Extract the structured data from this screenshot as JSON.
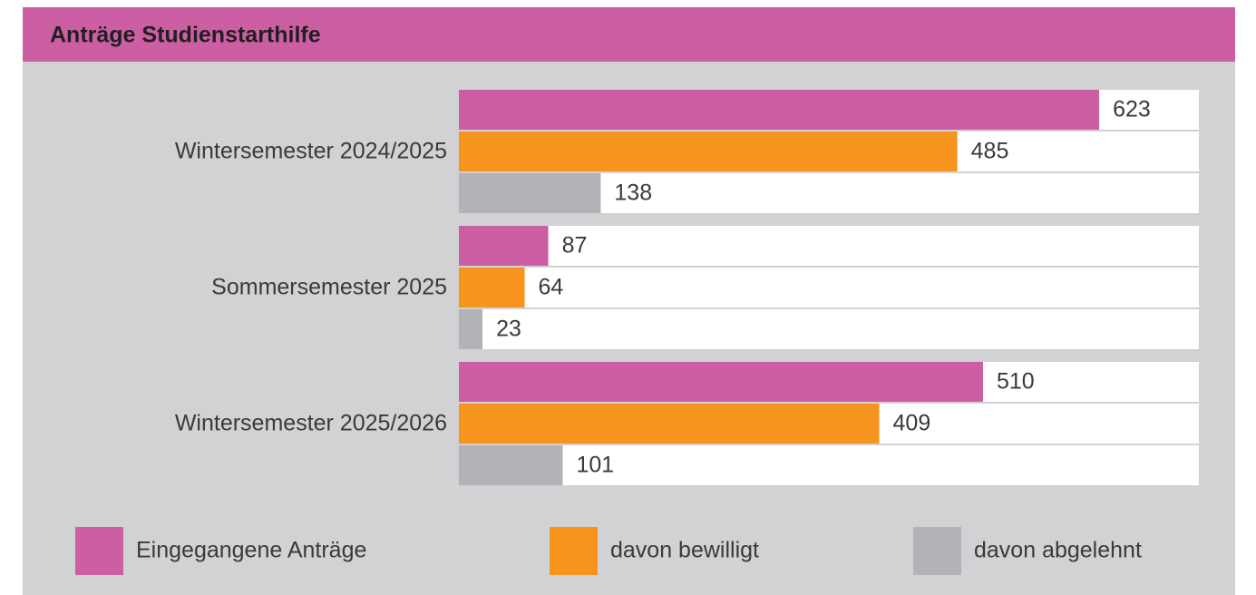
{
  "chart_data": {
    "type": "bar",
    "orientation": "horizontal",
    "title": "Anträge Studienstarthilfe",
    "categories": [
      "Wintersemester 2024/2025",
      "Sommersemester 2025",
      "Wintersemester 2025/2026"
    ],
    "series": [
      {
        "name": "Eingegangene Anträge",
        "color": "#cc5fa4",
        "values": [
          623,
          87,
          510
        ]
      },
      {
        "name": "davon bewilligt",
        "color": "#f7941d",
        "values": [
          485,
          64,
          409
        ]
      },
      {
        "name": "davon abgelehnt",
        "color": "#b1b3b6",
        "values": [
          138,
          23,
          101
        ]
      }
    ],
    "xlim": [
      0,
      720
    ],
    "legend": "bottom"
  }
}
